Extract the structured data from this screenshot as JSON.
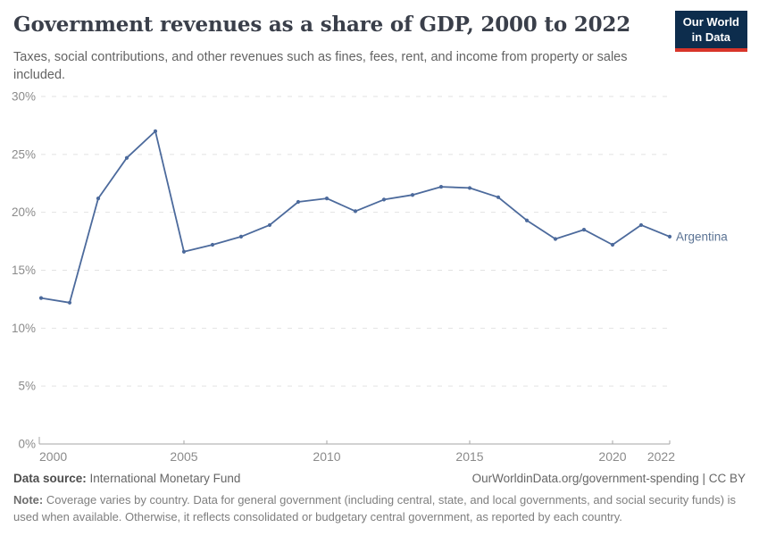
{
  "header": {
    "title": "Government revenues as a share of GDP, 2000 to 2022",
    "subtitle": "Taxes, social contributions, and other revenues such as fines, fees, rent, and income from property or sales included.",
    "logo": {
      "line1": "Our World",
      "line2": "in Data"
    }
  },
  "chart_data": {
    "type": "line",
    "title": "Government revenues as a share of GDP, 2000 to 2022",
    "x": [
      2000,
      2001,
      2002,
      2003,
      2004,
      2005,
      2006,
      2007,
      2008,
      2009,
      2010,
      2011,
      2012,
      2013,
      2014,
      2015,
      2016,
      2017,
      2018,
      2019,
      2020,
      2021,
      2022
    ],
    "series": [
      {
        "name": "Argentina",
        "values": [
          12.6,
          12.2,
          21.2,
          24.7,
          27.0,
          16.6,
          17.2,
          17.9,
          18.9,
          20.9,
          21.2,
          20.1,
          21.1,
          21.5,
          22.2,
          22.1,
          21.3,
          19.3,
          17.7,
          18.5,
          17.2,
          18.9,
          17.9
        ]
      }
    ],
    "xlabel": "",
    "ylabel": "",
    "ylim": [
      0,
      30
    ],
    "yticks": [
      0,
      5,
      10,
      15,
      20,
      25,
      30
    ],
    "ytick_suffix": "%",
    "xticks": [
      2000,
      2005,
      2010,
      2015,
      2020,
      2022
    ],
    "grid": "horizontal-dashed",
    "legend": "series label at line end"
  },
  "colors": {
    "line": "#4C6A9C",
    "marker": "#4C6A9C",
    "entity_label": "#5b7394",
    "gridline": "#e2e2e2",
    "axis": "#a6a6a6",
    "tick_label": "#8b8b8b",
    "logo_bg": "#0d2d4d",
    "logo_stripe": "#d8352a"
  },
  "footer": {
    "source_label": "Data source:",
    "source_value": "International Monetary Fund",
    "link": "OurWorldinData.org/government-spending | CC BY",
    "note_label": "Note:",
    "note_text": "Coverage varies by country. Data for general government (including central, state, and local governments, and social security funds) is used when available. Otherwise, it reflects consolidated or budgetary central government, as reported by each country."
  }
}
